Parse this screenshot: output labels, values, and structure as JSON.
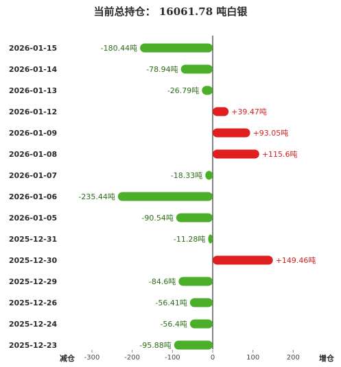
{
  "chart_data": {
    "type": "bar",
    "orientation": "horizontal",
    "title": "当前总持仓：  16061.78 吨白银",
    "categories": [
      "2026-01-15",
      "2026-01-14",
      "2026-01-13",
      "2026-01-12",
      "2026-01-09",
      "2026-01-08",
      "2026-01-07",
      "2026-01-06",
      "2026-01-05",
      "2025-12-31",
      "2025-12-30",
      "2025-12-29",
      "2025-12-26",
      "2025-12-24",
      "2025-12-23"
    ],
    "values": [
      -180.44,
      -78.94,
      -26.79,
      39.47,
      93.05,
      115.6,
      -18.33,
      -235.44,
      -90.54,
      -11.28,
      149.46,
      -84.6,
      -56.41,
      -56.4,
      -95.88
    ],
    "value_labels": [
      "-180.44吨",
      "-78.94吨",
      "-26.79吨",
      "+39.47吨",
      "+93.05吨",
      "+115.6吨",
      "-18.33吨",
      "-235.44吨",
      "-90.54吨",
      "-11.28吨",
      "+149.46吨",
      "-84.6吨",
      "-56.41吨",
      "-56.4吨",
      "-95.88吨"
    ],
    "xlim": [
      -300,
      200
    ],
    "xticks": [
      -300,
      -200,
      -100,
      0,
      100,
      200
    ],
    "xtick_labels": [
      "-300",
      "-200",
      "-100",
      "0",
      "100",
      "200"
    ],
    "left_end_label": "减仓",
    "right_end_label": "增仓",
    "colors": {
      "negative": "#4caf2a",
      "positive": "#e02020",
      "negative_text": "#2e6b1a",
      "positive_text": "#d42020",
      "axis": "#333333"
    }
  }
}
